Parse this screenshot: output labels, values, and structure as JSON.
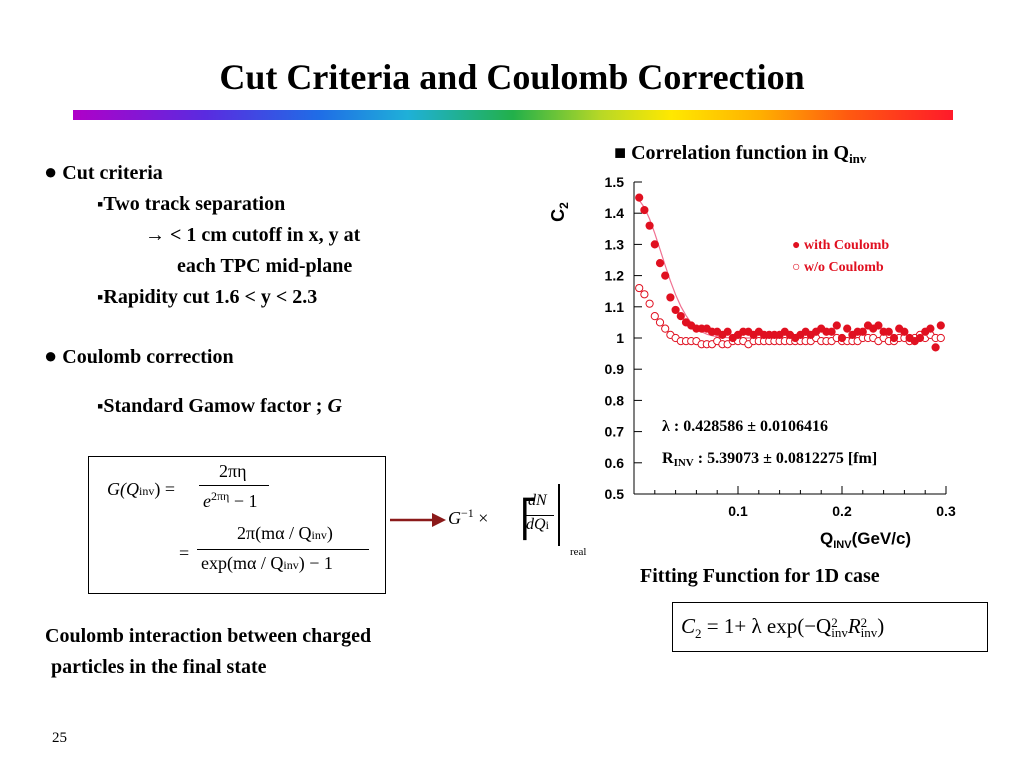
{
  "slide": {
    "title": "Cut Criteria and Coulomb Correction",
    "page_number": "25"
  },
  "left": {
    "cut_heading": "Cut criteria",
    "cut_item1": "Two track separation",
    "cut_item1_line2": "→ < 1 cm cutoff in x, y at",
    "cut_item1_line3": "each TPC mid-plane",
    "cut_item2": "Rapidity cut 1.6 < y < 2.3",
    "coulomb_heading": "Coulomb correction",
    "gamow_label": "Standard Gamow factor ;",
    "gamow_symbol": "G",
    "caption_line1": "Coulomb interaction between charged",
    "caption_line2": "particles in the final state"
  },
  "formula_gamow": {
    "lhs": "G(Q",
    "lhs_sub": "inv",
    "lhs_close": ") =",
    "num1": "2πη",
    "den1": "e",
    "den1_sup": "2πη",
    "den1_tail": "− 1",
    "eq2": "=",
    "num2": "2π(mα / Q",
    "num2_sub": "inv",
    "num2_close": ")",
    "den2": "exp(mα / Q",
    "den2_sub": "inv",
    "den2_close": ") − 1"
  },
  "formula_correction": {
    "g_inv": "G",
    "g_inv_sup": "−1",
    "times": "×",
    "dn": "dN",
    "dq": "dQ",
    "dq_sub": "i",
    "real_sub": "real"
  },
  "plot": {
    "heading": "Correlation function in Q",
    "heading_sub": "inv",
    "caption": "Fitting Function for 1D case",
    "legend_with": "with Coulomb",
    "legend_without": "w/o  Coulomb",
    "lambda_text": "λ : 0.428586 ± 0.0106416",
    "r_label": "R",
    "r_sub": "INV",
    "r_text": " : 5.39073 ± 0.0812275 [fm]",
    "fit_formula": "C",
    "fit_formula_sub": "2",
    "fit_formula_rest": "= 1+ λ exp(−Q",
    "fit_q_sup": "2",
    "fit_q_sub": "inv",
    "fit_r": "R",
    "fit_r_sup": "2",
    "fit_r_sub": "inv",
    "fit_close": ")"
  },
  "chart_data": {
    "type": "scatter",
    "ylabel": "C",
    "ylabel_sub": "2",
    "xlabel": "Q",
    "xlabel_sub": "INV",
    "xlabel_unit": "(GeV/c)",
    "xlim": [
      0.0,
      0.3
    ],
    "ylim": [
      0.5,
      1.5
    ],
    "x_ticks": [
      "0.1",
      "0.2",
      "0.3"
    ],
    "y_ticks": [
      "0.5",
      "0.6",
      "0.7",
      "0.8",
      "0.9",
      "1",
      "1.1",
      "1.2",
      "1.3",
      "1.4",
      "1.5"
    ],
    "colors": {
      "with": "#e01020",
      "without": "#e01020",
      "fit": "#f07090"
    },
    "series": [
      {
        "name": "with Coulomb",
        "marker": "filled",
        "x": [
          0.005,
          0.01,
          0.015,
          0.02,
          0.025,
          0.03,
          0.035,
          0.04,
          0.045,
          0.05,
          0.055,
          0.06,
          0.065,
          0.07,
          0.075,
          0.08,
          0.085,
          0.09,
          0.095,
          0.1,
          0.105,
          0.11,
          0.115,
          0.12,
          0.125,
          0.13,
          0.135,
          0.14,
          0.145,
          0.15,
          0.155,
          0.16,
          0.165,
          0.17,
          0.175,
          0.18,
          0.185,
          0.19,
          0.195,
          0.2,
          0.205,
          0.21,
          0.215,
          0.22,
          0.225,
          0.23,
          0.235,
          0.24,
          0.245,
          0.25,
          0.255,
          0.26,
          0.265,
          0.27,
          0.275,
          0.28,
          0.285,
          0.29,
          0.295
        ],
        "y": [
          1.45,
          1.41,
          1.36,
          1.3,
          1.24,
          1.2,
          1.13,
          1.09,
          1.07,
          1.05,
          1.04,
          1.03,
          1.03,
          1.03,
          1.02,
          1.02,
          1.01,
          1.02,
          1.0,
          1.01,
          1.02,
          1.02,
          1.01,
          1.02,
          1.01,
          1.01,
          1.01,
          1.01,
          1.02,
          1.01,
          1.0,
          1.01,
          1.02,
          1.01,
          1.02,
          1.03,
          1.02,
          1.02,
          1.04,
          1.0,
          1.03,
          1.01,
          1.02,
          1.02,
          1.04,
          1.03,
          1.04,
          1.02,
          1.02,
          1.0,
          1.03,
          1.02,
          1.0,
          0.99,
          1.0,
          1.02,
          1.03,
          0.97,
          1.04
        ]
      },
      {
        "name": "w/o  Coulomb",
        "marker": "open",
        "x": [
          0.005,
          0.01,
          0.015,
          0.02,
          0.025,
          0.03,
          0.035,
          0.04,
          0.045,
          0.05,
          0.055,
          0.06,
          0.065,
          0.07,
          0.075,
          0.08,
          0.085,
          0.09,
          0.095,
          0.1,
          0.105,
          0.11,
          0.115,
          0.12,
          0.125,
          0.13,
          0.135,
          0.14,
          0.145,
          0.15,
          0.155,
          0.16,
          0.165,
          0.17,
          0.175,
          0.18,
          0.185,
          0.19,
          0.195,
          0.2,
          0.205,
          0.21,
          0.215,
          0.22,
          0.225,
          0.23,
          0.235,
          0.24,
          0.245,
          0.25,
          0.255,
          0.26,
          0.265,
          0.27,
          0.275,
          0.28,
          0.285,
          0.29,
          0.295
        ],
        "y": [
          1.16,
          1.14,
          1.11,
          1.07,
          1.05,
          1.03,
          1.01,
          1.0,
          0.99,
          0.99,
          0.99,
          0.99,
          0.98,
          0.98,
          0.98,
          0.99,
          0.98,
          0.98,
          0.99,
          0.99,
          0.99,
          0.98,
          0.99,
          0.99,
          0.99,
          0.99,
          0.99,
          0.99,
          0.99,
          0.99,
          0.99,
          0.99,
          0.99,
          0.99,
          1.0,
          0.99,
          0.99,
          0.99,
          1.0,
          0.99,
          0.99,
          0.99,
          0.99,
          1.0,
          1.0,
          1.0,
          0.99,
          1.0,
          0.99,
          0.99,
          1.0,
          1.0,
          0.99,
          1.0,
          1.01,
          1.0,
          1.01,
          1.0,
          1.0
        ]
      }
    ]
  }
}
